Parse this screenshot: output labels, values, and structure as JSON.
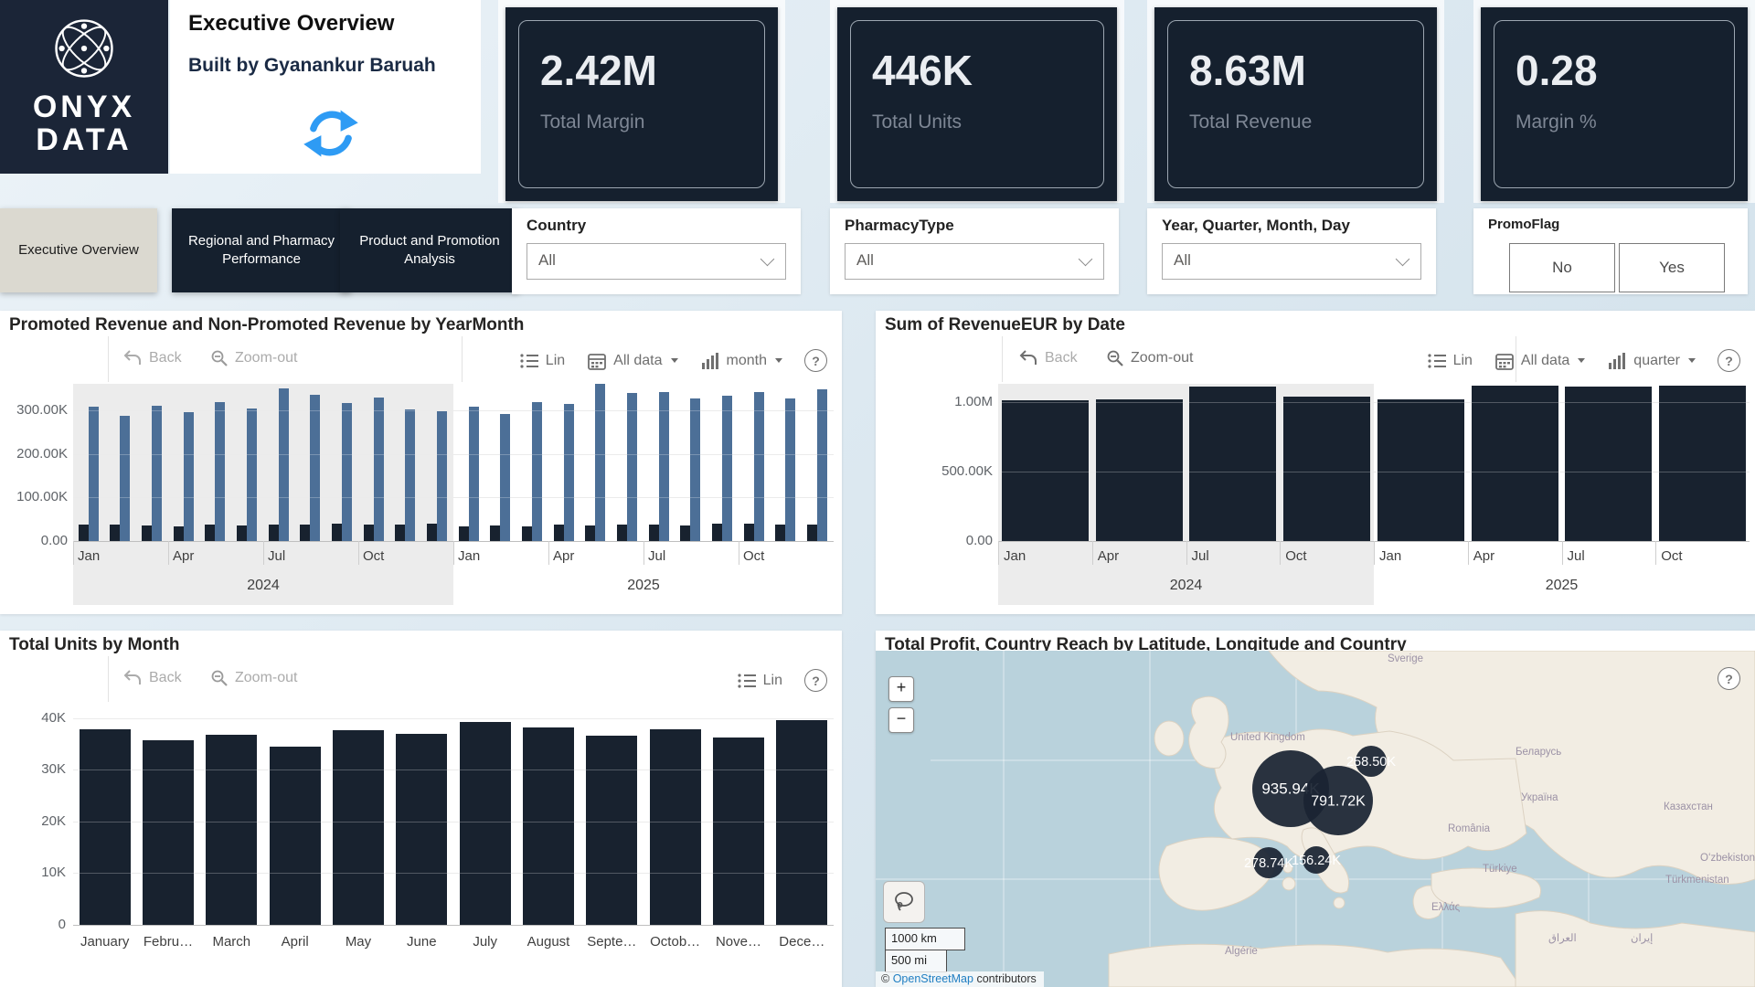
{
  "header": {
    "logo_line1": "ONYX",
    "logo_line2": "DATA",
    "title": "Executive Overview",
    "subtitle": "Built by Gyanankur Baruah"
  },
  "kpis": [
    {
      "value": "2.42M",
      "label": "Total Margin"
    },
    {
      "value": "446K",
      "label": "Total Units"
    },
    {
      "value": "8.63M",
      "label": "Total Revenue"
    },
    {
      "value": "0.28",
      "label": "Margin %"
    }
  ],
  "nav_tabs": [
    {
      "label": "Executive Overview",
      "active": true
    },
    {
      "label": "Regional and Pharmacy Performance",
      "active": false
    },
    {
      "label": "Product and Promotion Analysis",
      "active": false
    }
  ],
  "filters": {
    "country": {
      "label": "Country",
      "value": "All"
    },
    "pharmacy_type": {
      "label": "PharmacyType",
      "value": "All"
    },
    "date": {
      "label": "Year, Quarter, Month, Day",
      "value": "All"
    },
    "promo_flag": {
      "label": "PromoFlag",
      "options": [
        "No",
        "Yes"
      ]
    }
  },
  "chart_toolbar": {
    "back": "Back",
    "zoom_out": "Zoom-out",
    "lin": "Lin",
    "help": "?"
  },
  "chart_data": [
    {
      "id": "promoted_vs_nonpromoted",
      "type": "bar",
      "title": "Promoted Revenue and Non-Promoted Revenue by YearMonth",
      "range_control": "All data",
      "granularity_control": "month",
      "x_year_groups": [
        "2024",
        "2025"
      ],
      "x_tick_labels": [
        "Jan",
        "Apr",
        "Jul",
        "Oct"
      ],
      "categories": [
        "Jan",
        "Feb",
        "Mar",
        "Apr",
        "May",
        "Jun",
        "Jul",
        "Aug",
        "Sep",
        "Oct",
        "Nov",
        "Dec",
        "Jan",
        "Feb",
        "Mar",
        "Apr",
        "May",
        "Jun",
        "Jul",
        "Aug",
        "Sep",
        "Oct",
        "Nov",
        "Dec"
      ],
      "series": [
        {
          "name": "Non-Promoted Revenue",
          "color": "#4C6F97",
          "values_k": [
            310,
            288,
            311,
            296,
            319,
            306,
            352,
            336,
            317,
            330,
            304,
            299,
            309,
            293,
            320,
            316,
            361,
            342,
            344,
            329,
            334,
            344,
            329,
            349
          ]
        },
        {
          "name": "Promoted Revenue",
          "color": "#18222F",
          "values_k": [
            37,
            37,
            35,
            33,
            38,
            35,
            37,
            38,
            40,
            38,
            37,
            39,
            34,
            36,
            33,
            38,
            36,
            38,
            38,
            36,
            40,
            40,
            38,
            38
          ]
        }
      ],
      "y_ticks": [
        "0.00",
        "100.00K",
        "200.00K",
        "300.00K"
      ],
      "ylim_k": [
        0,
        362
      ]
    },
    {
      "id": "revenue_by_date",
      "type": "bar",
      "title": "Sum of RevenueEUR by Date",
      "range_control": "All data",
      "granularity_control": "quarter",
      "x_year_groups": [
        "2024",
        "2025"
      ],
      "x_tick_labels": [
        "Jan",
        "Apr",
        "Jul",
        "Oct",
        "Jan",
        "Apr",
        "Jul",
        "Oct"
      ],
      "categories": [
        "Q1 2024",
        "Q2 2024",
        "Q3 2024",
        "Q4 2024",
        "Q1 2025",
        "Q2 2025",
        "Q3 2025",
        "Q4 2025"
      ],
      "values_m": [
        1.01,
        1.02,
        1.11,
        1.04,
        1.02,
        1.12,
        1.11,
        1.12
      ],
      "bar_color": "#18222F",
      "y_ticks": [
        "0.00",
        "500.00K",
        "1.00M"
      ],
      "ylim_m": [
        0,
        1.13
      ]
    },
    {
      "id": "units_by_month",
      "type": "bar",
      "title": "Total Units by Month",
      "categories": [
        "January",
        "Febru…",
        "March",
        "April",
        "May",
        "June",
        "July",
        "August",
        "Septe…",
        "Octob…",
        "Nove…",
        "Dece…"
      ],
      "values_k": [
        37.8,
        35.7,
        36.8,
        34.4,
        37.7,
        36.9,
        39.2,
        38.2,
        36.6,
        37.9,
        36.2,
        39.5
      ],
      "bar_color": "#18222F",
      "y_ticks": [
        "0",
        "10K",
        "20K",
        "30K",
        "40K"
      ],
      "ylim_k": [
        0,
        41
      ]
    },
    {
      "id": "profit_map",
      "type": "map",
      "title": "Total Profit, Country Reach by Latitude, Longitude and Country",
      "bubbles": [
        {
          "value": "935.94K"
        },
        {
          "value": "791.72K"
        },
        {
          "value": "258.50K"
        },
        {
          "value": "278.74K"
        },
        {
          "value": "156.24K"
        }
      ],
      "place_labels": [
        "United Kingdom",
        "Sverige",
        "Беларусь",
        "Україна",
        "România",
        "Казахстан",
        "Oʻzbekiston",
        "Türkiye",
        "Türkmenistan",
        "Ελλάς",
        "Algérie",
        "العراق",
        "إيران"
      ],
      "zoom_controls": [
        "+",
        "−"
      ],
      "scale_km": "1000 km",
      "scale_mi": "500 mi",
      "attribution": {
        "prefix": "©",
        "link": "OpenStreetMap",
        "suffix": "contributors"
      }
    }
  ]
}
